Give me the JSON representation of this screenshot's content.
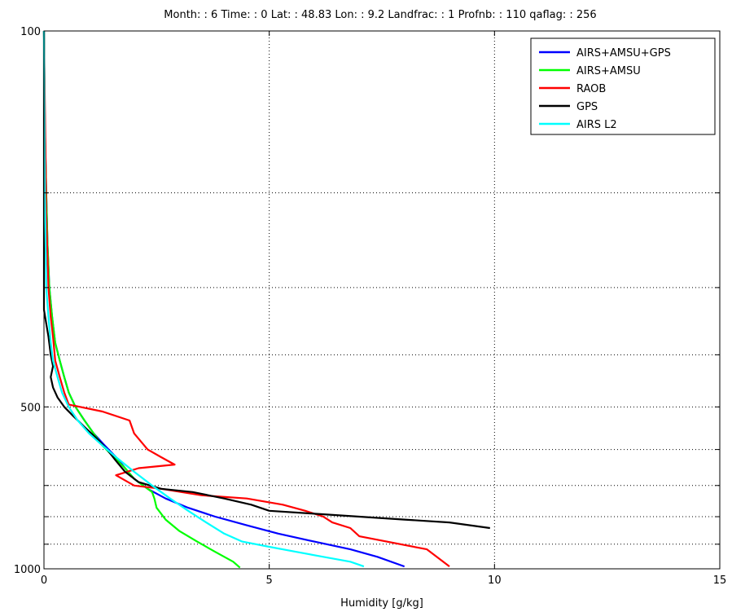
{
  "chart_data": {
    "type": "line",
    "title": "Month: : 6 Time: : 0  Lat: : 48.83  Lon: : 9.2  Landfrac: : 1  Profnb: : 110 qaflag: : 256",
    "xlabel": "Humidity [g/kg]",
    "ylabel": "",
    "xlim": [
      0,
      15
    ],
    "ylim": [
      100,
      1000
    ],
    "y_scale": "log",
    "y_reversed": true,
    "x_ticks": [
      "0",
      "5",
      "10",
      "15"
    ],
    "x_tick_values": [
      0,
      5,
      10,
      15
    ],
    "y_ticks": [
      "100",
      "500",
      "1000"
    ],
    "y_tick_values": [
      100,
      500,
      1000
    ],
    "grid": true,
    "grid_style": "dotted",
    "y_grid_values": [
      100,
      200,
      300,
      400,
      500,
      600,
      700,
      800,
      900,
      1000
    ],
    "legend_position": "top-right",
    "series": [
      {
        "name": "AIRS+AMSU+GPS",
        "color": "#0000ff",
        "x": [
          0.0,
          0.02,
          0.05,
          0.08,
          0.12,
          0.18,
          0.25,
          0.35,
          0.45,
          0.55,
          0.7,
          0.9,
          1.1,
          1.35,
          1.6,
          1.8,
          2.0,
          2.3,
          2.7,
          3.2,
          3.8,
          4.5,
          5.2,
          6.0,
          6.8,
          7.4,
          8.0
        ],
        "y": [
          100,
          150,
          200,
          250,
          300,
          340,
          380,
          410,
          440,
          470,
          500,
          530,
          560,
          590,
          620,
          650,
          680,
          710,
          740,
          770,
          800,
          830,
          860,
          890,
          920,
          950,
          990
        ]
      },
      {
        "name": "AIRS+AMSU",
        "color": "#00ff00",
        "x": [
          0.0,
          0.02,
          0.05,
          0.08,
          0.12,
          0.18,
          0.25,
          0.35,
          0.45,
          0.55,
          0.7,
          0.9,
          1.1,
          1.3,
          1.55,
          1.8,
          2.0,
          2.2,
          2.4,
          2.45,
          2.5,
          2.7,
          3.0,
          3.4,
          3.8,
          4.2,
          4.35
        ],
        "y": [
          100,
          150,
          200,
          250,
          300,
          340,
          380,
          410,
          440,
          470,
          500,
          530,
          560,
          590,
          620,
          650,
          680,
          700,
          720,
          740,
          770,
          810,
          850,
          890,
          930,
          970,
          995
        ]
      },
      {
        "name": "RAOB",
        "color": "#ff0000",
        "x": [
          0.0,
          0.05,
          0.1,
          0.15,
          0.2,
          0.25,
          0.35,
          0.45,
          0.55,
          1.3,
          1.9,
          2.0,
          2.3,
          2.6,
          2.9,
          2.1,
          1.6,
          2.0,
          2.6,
          3.5,
          4.5,
          5.3,
          5.8,
          6.2,
          6.4,
          6.8,
          7.0,
          8.5,
          9.0
        ],
        "y": [
          100,
          220,
          300,
          340,
          370,
          410,
          440,
          470,
          495,
          510,
          530,
          560,
          600,
          620,
          640,
          650,
          670,
          700,
          710,
          730,
          740,
          760,
          780,
          800,
          820,
          840,
          870,
          920,
          990
        ]
      },
      {
        "name": "GPS",
        "color": "#000000",
        "x": [
          0.0,
          0.0,
          0.05,
          0.1,
          0.15,
          0.2,
          0.15,
          0.2,
          0.3,
          0.45,
          0.65,
          0.9,
          1.15,
          1.4,
          1.6,
          1.8,
          2.1,
          2.6,
          3.3,
          4.0,
          4.6,
          5.0,
          6.0,
          7.0,
          8.0,
          9.0,
          9.9
        ],
        "y": [
          100,
          330,
          350,
          370,
          400,
          420,
          440,
          460,
          480,
          500,
          520,
          545,
          570,
          600,
          630,
          660,
          690,
          710,
          720,
          740,
          760,
          780,
          790,
          800,
          810,
          820,
          840
        ]
      },
      {
        "name": "AIRS L2",
        "color": "#00ffff",
        "x": [
          0.0,
          0.02,
          0.05,
          0.1,
          0.15,
          0.2,
          0.3,
          0.4,
          0.55,
          0.75,
          1.0,
          1.3,
          1.6,
          2.0,
          2.4,
          2.8,
          3.2,
          3.6,
          4.0,
          4.4,
          5.0,
          5.6,
          6.2,
          6.8,
          7.1
        ],
        "y": [
          100,
          200,
          300,
          340,
          380,
          410,
          440,
          470,
          500,
          530,
          560,
          590,
          620,
          660,
          700,
          740,
          780,
          820,
          860,
          890,
          910,
          930,
          950,
          970,
          990
        ]
      }
    ]
  }
}
